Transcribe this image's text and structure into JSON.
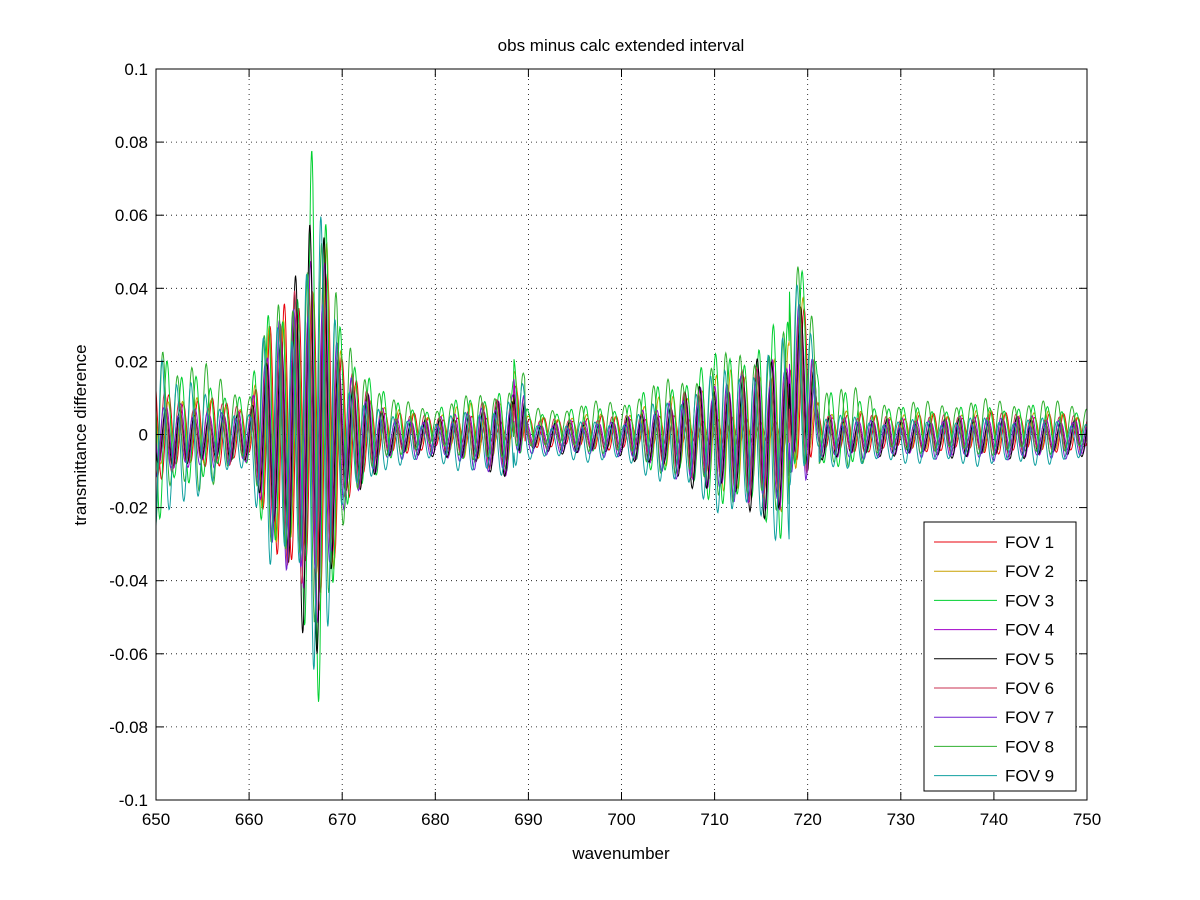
{
  "chart_data": {
    "type": "line",
    "title": "obs minus calc extended interval",
    "xlabel": "wavenumber",
    "ylabel": "transmittance difference",
    "xlim": [
      650,
      750
    ],
    "ylim": [
      -0.1,
      0.1
    ],
    "xticks": [
      650,
      660,
      670,
      680,
      690,
      700,
      710,
      720,
      730,
      740,
      750
    ],
    "xtick_labels": [
      "650",
      "660",
      "670",
      "680",
      "690",
      "700",
      "710",
      "720",
      "730",
      "740",
      "750"
    ],
    "yticks": [
      -0.1,
      -0.08,
      -0.06,
      -0.04,
      -0.02,
      0,
      0.02,
      0.04,
      0.06,
      0.08,
      0.1
    ],
    "ytick_labels": [
      "-0.1",
      "-0.08",
      "-0.06",
      "-0.04",
      "-0.02",
      "0",
      "0.02",
      "0.04",
      "0.06",
      "0.08",
      "0.1"
    ],
    "grid": true,
    "legend_position": "lower-right",
    "series": [
      {
        "name": "FOV 1",
        "color": "#e8000b",
        "envelope": [
          [
            650,
            0.015
          ],
          [
            652,
            0.012
          ],
          [
            655,
            0.01
          ],
          [
            660,
            0.008
          ],
          [
            662,
            0.03
          ],
          [
            665,
            0.04
          ],
          [
            667,
            0.055
          ],
          [
            668,
            0.06
          ],
          [
            670,
            0.02
          ],
          [
            675,
            0.006
          ],
          [
            680,
            0.005
          ],
          [
            688,
            0.004
          ],
          [
            689,
            0.012
          ],
          [
            690,
            0.004
          ],
          [
            700,
            0.005
          ],
          [
            717,
            0.004
          ],
          [
            720,
            0.025
          ],
          [
            721,
            0.006
          ],
          [
            730,
            0.005
          ],
          [
            741,
            0.006
          ],
          [
            750,
            0.005
          ]
        ],
        "bias": 0.0005
      },
      {
        "name": "FOV 2",
        "color": "#c8a000",
        "envelope": [
          [
            650,
            0.012
          ],
          [
            655,
            0.009
          ],
          [
            660,
            0.008
          ],
          [
            662,
            0.028
          ],
          [
            665,
            0.04
          ],
          [
            667,
            0.05
          ],
          [
            668,
            0.06
          ],
          [
            670,
            0.02
          ],
          [
            675,
            0.006
          ],
          [
            680,
            0.005
          ],
          [
            689,
            0.012
          ],
          [
            690,
            0.004
          ],
          [
            700,
            0.005
          ],
          [
            720,
            0.026
          ],
          [
            721,
            0.006
          ],
          [
            730,
            0.005
          ],
          [
            741,
            0.006
          ],
          [
            750,
            0.005
          ]
        ],
        "bias": 0.001
      },
      {
        "name": "FOV 3",
        "color": "#00d030",
        "envelope": [
          [
            650,
            0.04
          ],
          [
            652,
            0.016
          ],
          [
            655,
            0.014
          ],
          [
            660,
            0.01
          ],
          [
            662,
            0.033
          ],
          [
            665,
            0.045
          ],
          [
            667,
            0.09
          ],
          [
            668,
            0.06
          ],
          [
            670,
            0.03
          ],
          [
            675,
            0.008
          ],
          [
            680,
            0.006
          ],
          [
            689,
            0.014
          ],
          [
            690,
            0.005
          ],
          [
            700,
            0.007
          ],
          [
            720,
            0.034
          ],
          [
            721,
            0.012
          ],
          [
            730,
            0.006
          ],
          [
            741,
            0.007
          ],
          [
            750,
            0.006
          ]
        ],
        "bias": 0.0015
      },
      {
        "name": "FOV 4",
        "color": "#a000c8",
        "envelope": [
          [
            650,
            0.01
          ],
          [
            655,
            0.008
          ],
          [
            660,
            0.007
          ],
          [
            662,
            0.027
          ],
          [
            665,
            0.04
          ],
          [
            667,
            0.05
          ],
          [
            668,
            0.055
          ],
          [
            670,
            0.02
          ],
          [
            675,
            0.006
          ],
          [
            680,
            0.005
          ],
          [
            689,
            0.012
          ],
          [
            690,
            0.004
          ],
          [
            700,
            0.005
          ],
          [
            720,
            0.025
          ],
          [
            721,
            0.006
          ],
          [
            730,
            0.005
          ],
          [
            741,
            0.006
          ],
          [
            750,
            0.005
          ]
        ],
        "bias": -0.0005
      },
      {
        "name": "FOV 5",
        "color": "#000000",
        "envelope": [
          [
            650,
            0.008
          ],
          [
            655,
            0.008
          ],
          [
            660,
            0.006
          ],
          [
            662,
            0.03
          ],
          [
            664,
            0.037
          ],
          [
            667,
            0.065
          ],
          [
            668,
            0.072
          ],
          [
            670,
            0.02
          ],
          [
            675,
            0.006
          ],
          [
            680,
            0.005
          ],
          [
            689,
            0.012
          ],
          [
            690,
            0.004
          ],
          [
            700,
            0.005
          ],
          [
            720,
            0.028
          ],
          [
            721,
            0.006
          ],
          [
            730,
            0.005
          ],
          [
            741,
            0.006
          ],
          [
            750,
            0.005
          ]
        ],
        "bias": -0.001
      },
      {
        "name": "FOV 6",
        "color": "#c83050",
        "envelope": [
          [
            650,
            0.012
          ],
          [
            655,
            0.009
          ],
          [
            660,
            0.008
          ],
          [
            662,
            0.028
          ],
          [
            665,
            0.04
          ],
          [
            667,
            0.05
          ],
          [
            668,
            0.055
          ],
          [
            670,
            0.02
          ],
          [
            675,
            0.006
          ],
          [
            680,
            0.005
          ],
          [
            689,
            0.012
          ],
          [
            690,
            0.004
          ],
          [
            700,
            0.005
          ],
          [
            720,
            0.025
          ],
          [
            721,
            0.006
          ],
          [
            730,
            0.005
          ],
          [
            741,
            0.006
          ],
          [
            750,
            0.005
          ]
        ],
        "bias": 0.0
      },
      {
        "name": "FOV 7",
        "color": "#7020d0",
        "envelope": [
          [
            650,
            0.01
          ],
          [
            655,
            0.008
          ],
          [
            660,
            0.007
          ],
          [
            662,
            0.028
          ],
          [
            665,
            0.04
          ],
          [
            667,
            0.05
          ],
          [
            668,
            0.05
          ],
          [
            670,
            0.02
          ],
          [
            675,
            0.006
          ],
          [
            680,
            0.005
          ],
          [
            689,
            0.012
          ],
          [
            690,
            0.004
          ],
          [
            700,
            0.005
          ],
          [
            720,
            0.025
          ],
          [
            721,
            0.006
          ],
          [
            730,
            0.005
          ],
          [
            741,
            0.006
          ],
          [
            750,
            0.005
          ]
        ],
        "bias": -0.0015
      },
      {
        "name": "FOV 8",
        "color": "#30b030",
        "envelope": [
          [
            650,
            0.03
          ],
          [
            652,
            0.02
          ],
          [
            655,
            0.018
          ],
          [
            660,
            0.01
          ],
          [
            662,
            0.03
          ],
          [
            665,
            0.042
          ],
          [
            667,
            0.07
          ],
          [
            668,
            0.055
          ],
          [
            670,
            0.028
          ],
          [
            675,
            0.008
          ],
          [
            680,
            0.006
          ],
          [
            689,
            0.013
          ],
          [
            690,
            0.005
          ],
          [
            700,
            0.008
          ],
          [
            720,
            0.03
          ],
          [
            721,
            0.014
          ],
          [
            730,
            0.007
          ],
          [
            741,
            0.008
          ],
          [
            750,
            0.007
          ]
        ],
        "bias": 0.002
      },
      {
        "name": "FOV 9",
        "color": "#10a0a0",
        "envelope": [
          [
            650,
            0.035
          ],
          [
            651,
            0.03
          ],
          [
            652,
            0.02
          ],
          [
            655,
            0.014
          ],
          [
            660,
            0.008
          ],
          [
            662,
            0.035
          ],
          [
            665,
            0.04
          ],
          [
            667,
            0.07
          ],
          [
            668,
            0.06
          ],
          [
            670,
            0.02
          ],
          [
            675,
            0.007
          ],
          [
            680,
            0.006
          ],
          [
            689,
            0.013
          ],
          [
            690,
            0.005
          ],
          [
            700,
            0.006
          ],
          [
            720,
            0.032
          ],
          [
            721,
            0.008
          ],
          [
            730,
            0.006
          ],
          [
            741,
            0.007
          ],
          [
            750,
            0.006
          ]
        ],
        "bias": -0.002
      }
    ]
  }
}
